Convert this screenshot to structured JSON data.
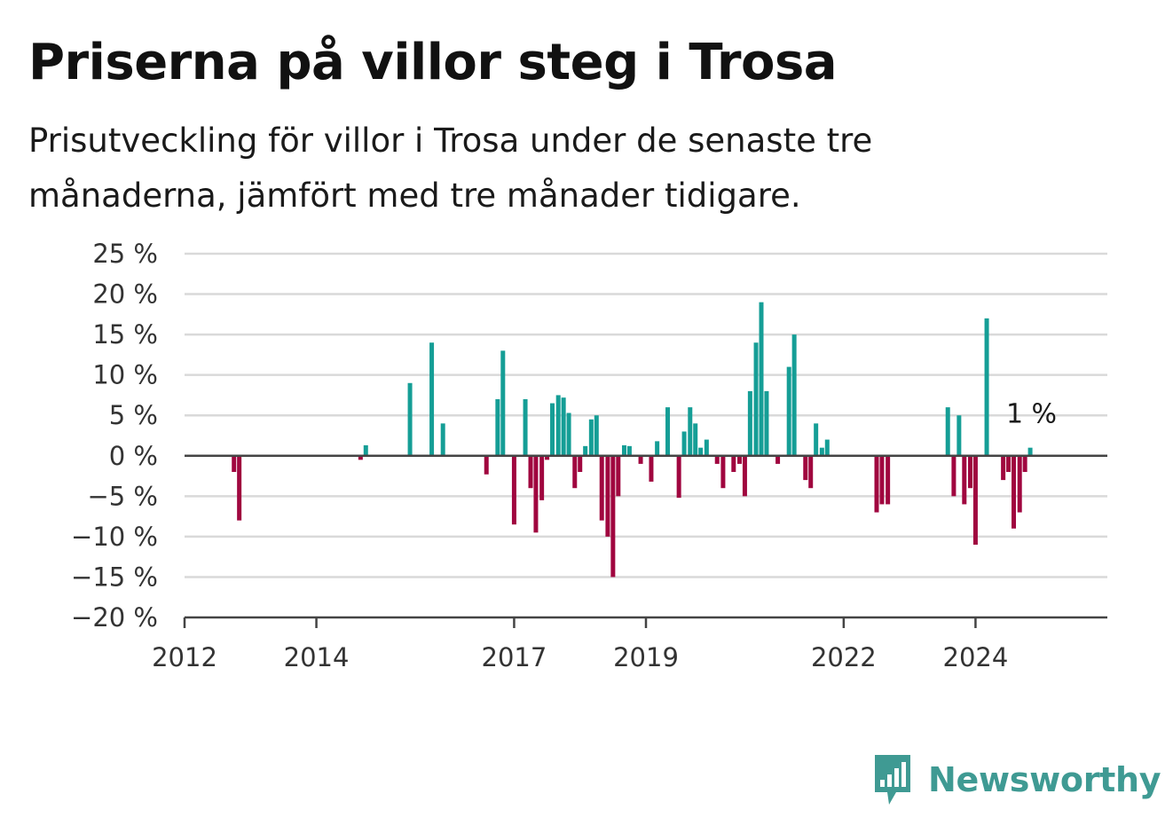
{
  "title": "Priserna på villor steg i Trosa",
  "subtitle": "Prisutveckling för villor i Trosa under de senaste tre månaderna, jämfört med tre månader tidigare.",
  "brand": {
    "name": "Newsworthy",
    "icon": "newsworthy-logo-icon",
    "color": "#3f9a93"
  },
  "colors": {
    "positive": "#159e96",
    "negative": "#a0063f",
    "grid": "#d9d9d9",
    "axis": "#444444"
  },
  "chart_data": {
    "type": "bar",
    "title": "Priserna på villor steg i Trosa",
    "xlabel": "",
    "ylabel": "",
    "ylim": [
      -20,
      25
    ],
    "yticks": [
      25,
      20,
      15,
      10,
      5,
      0,
      -5,
      -10,
      -15,
      -20
    ],
    "ytick_labels": [
      "25 %",
      "20 %",
      "15 %",
      "10 %",
      "5 %",
      "0 %",
      "−5 %",
      "−10 %",
      "−15 %",
      "−20 %"
    ],
    "xlim": [
      2012.0,
      2026.0
    ],
    "xticks": [
      2012,
      2014,
      2017,
      2019,
      2022,
      2024
    ],
    "xtick_labels": [
      "2012",
      "2014",
      "2017",
      "2019",
      "2022",
      "2024"
    ],
    "grid": true,
    "annotation": {
      "label": "1 %",
      "x": 2024.83,
      "y": 1
    },
    "points": [
      {
        "x": 2012.75,
        "y": -2
      },
      {
        "x": 2012.83,
        "y": -8
      },
      {
        "x": 2014.67,
        "y": -0.5
      },
      {
        "x": 2014.75,
        "y": 1.3
      },
      {
        "x": 2015.42,
        "y": 9
      },
      {
        "x": 2015.75,
        "y": 14
      },
      {
        "x": 2015.92,
        "y": 4
      },
      {
        "x": 2016.58,
        "y": -2.3
      },
      {
        "x": 2016.75,
        "y": 7
      },
      {
        "x": 2016.83,
        "y": 13
      },
      {
        "x": 2017.0,
        "y": -8.5
      },
      {
        "x": 2017.17,
        "y": 7
      },
      {
        "x": 2017.25,
        "y": -4
      },
      {
        "x": 2017.33,
        "y": -9.5
      },
      {
        "x": 2017.42,
        "y": -5.5
      },
      {
        "x": 2017.5,
        "y": -0.5
      },
      {
        "x": 2017.58,
        "y": 6.5
      },
      {
        "x": 2017.67,
        "y": 7.5
      },
      {
        "x": 2017.75,
        "y": 7.2
      },
      {
        "x": 2017.83,
        "y": 5.3
      },
      {
        "x": 2017.92,
        "y": -4
      },
      {
        "x": 2018.0,
        "y": -2
      },
      {
        "x": 2018.08,
        "y": 1.2
      },
      {
        "x": 2018.17,
        "y": 4.5
      },
      {
        "x": 2018.25,
        "y": 5
      },
      {
        "x": 2018.33,
        "y": -8
      },
      {
        "x": 2018.42,
        "y": -10
      },
      {
        "x": 2018.5,
        "y": -15
      },
      {
        "x": 2018.58,
        "y": -5
      },
      {
        "x": 2018.67,
        "y": 1.3
      },
      {
        "x": 2018.75,
        "y": 1.2
      },
      {
        "x": 2018.92,
        "y": -1
      },
      {
        "x": 2019.08,
        "y": -3.2
      },
      {
        "x": 2019.17,
        "y": 1.8
      },
      {
        "x": 2019.33,
        "y": 6
      },
      {
        "x": 2019.5,
        "y": -5.2
      },
      {
        "x": 2019.58,
        "y": 3
      },
      {
        "x": 2019.67,
        "y": 6
      },
      {
        "x": 2019.75,
        "y": 4
      },
      {
        "x": 2019.83,
        "y": 1
      },
      {
        "x": 2019.92,
        "y": 2
      },
      {
        "x": 2020.08,
        "y": -1
      },
      {
        "x": 2020.17,
        "y": -4
      },
      {
        "x": 2020.33,
        "y": -2
      },
      {
        "x": 2020.42,
        "y": -1
      },
      {
        "x": 2020.5,
        "y": -5
      },
      {
        "x": 2020.58,
        "y": 8
      },
      {
        "x": 2020.67,
        "y": 14
      },
      {
        "x": 2020.75,
        "y": 19
      },
      {
        "x": 2020.83,
        "y": 8
      },
      {
        "x": 2021.0,
        "y": -1
      },
      {
        "x": 2021.17,
        "y": 11
      },
      {
        "x": 2021.25,
        "y": 15
      },
      {
        "x": 2021.42,
        "y": -3
      },
      {
        "x": 2021.5,
        "y": -4
      },
      {
        "x": 2021.58,
        "y": 4
      },
      {
        "x": 2021.67,
        "y": 1
      },
      {
        "x": 2021.75,
        "y": 2
      },
      {
        "x": 2022.5,
        "y": -7
      },
      {
        "x": 2022.58,
        "y": -6
      },
      {
        "x": 2022.67,
        "y": -6
      },
      {
        "x": 2023.58,
        "y": 6
      },
      {
        "x": 2023.67,
        "y": -5
      },
      {
        "x": 2023.75,
        "y": 5
      },
      {
        "x": 2023.83,
        "y": -6
      },
      {
        "x": 2023.92,
        "y": -4
      },
      {
        "x": 2024.0,
        "y": -11
      },
      {
        "x": 2024.17,
        "y": 17
      },
      {
        "x": 2024.42,
        "y": -3
      },
      {
        "x": 2024.5,
        "y": -2
      },
      {
        "x": 2024.58,
        "y": -9
      },
      {
        "x": 2024.67,
        "y": -7
      },
      {
        "x": 2024.75,
        "y": -2
      },
      {
        "x": 2024.83,
        "y": 1
      }
    ]
  }
}
